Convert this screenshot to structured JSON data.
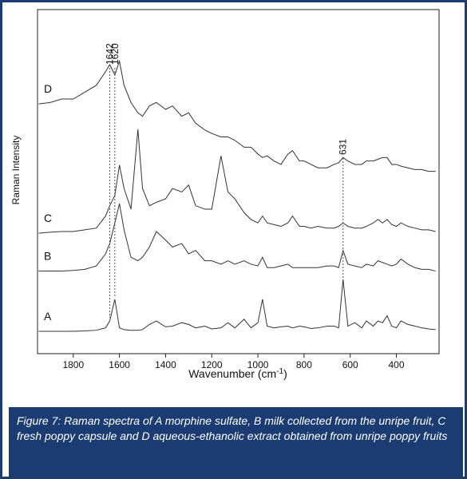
{
  "chart_data": {
    "type": "line",
    "ylabel": "Raman Intensity",
    "xlabel": {
      "text": "Wavenumber (cm",
      "sup": "-1",
      "end": ")"
    },
    "caption": "Figure 7: Raman spectra of A morphine sulfate, B milk collected from the unripe fruit, C fresh poppy capsule and D aqueous-ethanolic extract obtained from unripe poppy fruits",
    "xlim": [
      1955,
      215
    ],
    "xticks": [
      1800,
      1600,
      1400,
      1200,
      1000,
      800,
      600,
      400
    ],
    "ylim": [
      0,
      100
    ],
    "x": [
      1950,
      1900,
      1850,
      1800,
      1750,
      1700,
      1660,
      1642,
      1620,
      1600,
      1580,
      1550,
      1520,
      1500,
      1470,
      1440,
      1400,
      1370,
      1330,
      1300,
      1270,
      1230,
      1200,
      1160,
      1130,
      1100,
      1060,
      1030,
      1000,
      980,
      960,
      930,
      900,
      870,
      850,
      820,
      800,
      770,
      740,
      700,
      670,
      650,
      631,
      610,
      580,
      550,
      530,
      500,
      480,
      460,
      440,
      420,
      400,
      380,
      350,
      320,
      290,
      260,
      230
    ],
    "series": [
      {
        "name": "A",
        "color": "#333333",
        "values": [
          6.5,
          6.5,
          6.5,
          6.5,
          6.6,
          6.8,
          7.5,
          9.5,
          15.8,
          7.5,
          7,
          6.8,
          6.8,
          7,
          8.5,
          9.5,
          7.8,
          8,
          9,
          8.5,
          7.5,
          8,
          7.2,
          7.5,
          9,
          7.5,
          10,
          7.5,
          9,
          15.8,
          8,
          7.5,
          7.8,
          8,
          7.5,
          8,
          7.8,
          7.3,
          7.5,
          8,
          8,
          7.5,
          21.6,
          8,
          9,
          7.5,
          9.5,
          8,
          9.5,
          9,
          11,
          8,
          7.5,
          9.5,
          8.5,
          8,
          7.5,
          7.2,
          7
        ]
      },
      {
        "name": "B",
        "color": "#333333",
        "values": [
          24,
          24,
          24,
          24.2,
          24.5,
          25.5,
          29,
          32,
          38,
          43.6,
          36,
          28,
          27,
          28,
          31,
          35.5,
          33,
          31,
          32,
          29,
          30,
          27,
          27,
          26,
          27,
          26,
          27,
          26,
          25.5,
          28,
          25,
          25,
          25.5,
          26,
          25,
          25,
          25,
          25,
          25,
          25.5,
          25.5,
          25,
          30,
          26,
          25.5,
          25,
          26,
          25.5,
          27,
          26.5,
          26,
          25.5,
          26,
          27.5,
          26,
          25,
          24.5,
          24.5,
          24
        ]
      },
      {
        "name": "C",
        "color": "#333333",
        "values": [
          35,
          35.3,
          35.5,
          35.5,
          36,
          36.5,
          40,
          43,
          46,
          54.8,
          48,
          42,
          65.2,
          48,
          43,
          44,
          45,
          48,
          47,
          49,
          43,
          42,
          42,
          57.5,
          47,
          45,
          41,
          39,
          38,
          40,
          38,
          37.5,
          37,
          38,
          40,
          37,
          37,
          36.5,
          37,
          36.5,
          36.5,
          37,
          38,
          37,
          36.5,
          36.5,
          37,
          38,
          39,
          38,
          39,
          37.5,
          37,
          38,
          37,
          36.5,
          36,
          36,
          35.5
        ]
      },
      {
        "name": "D",
        "color": "#333333",
        "values": [
          72.6,
          73,
          74,
          74,
          76,
          78,
          82,
          84,
          81,
          85,
          78,
          73,
          70,
          69,
          72,
          73,
          71,
          72,
          69,
          70,
          67,
          65,
          64,
          63,
          63,
          62,
          60,
          60,
          58,
          57,
          57.5,
          56,
          55,
          58,
          59,
          56,
          56,
          55,
          54,
          54,
          55,
          55.5,
          57,
          56,
          55,
          55,
          56,
          56,
          56.5,
          57,
          57,
          55,
          55,
          54.5,
          54,
          53.5,
          53.5,
          53,
          53
        ]
      }
    ],
    "annotations": [
      {
        "text": "1642",
        "x": 1642
      },
      {
        "text": "1620",
        "x": 1620
      },
      {
        "text": "631",
        "x": 631
      }
    ]
  }
}
